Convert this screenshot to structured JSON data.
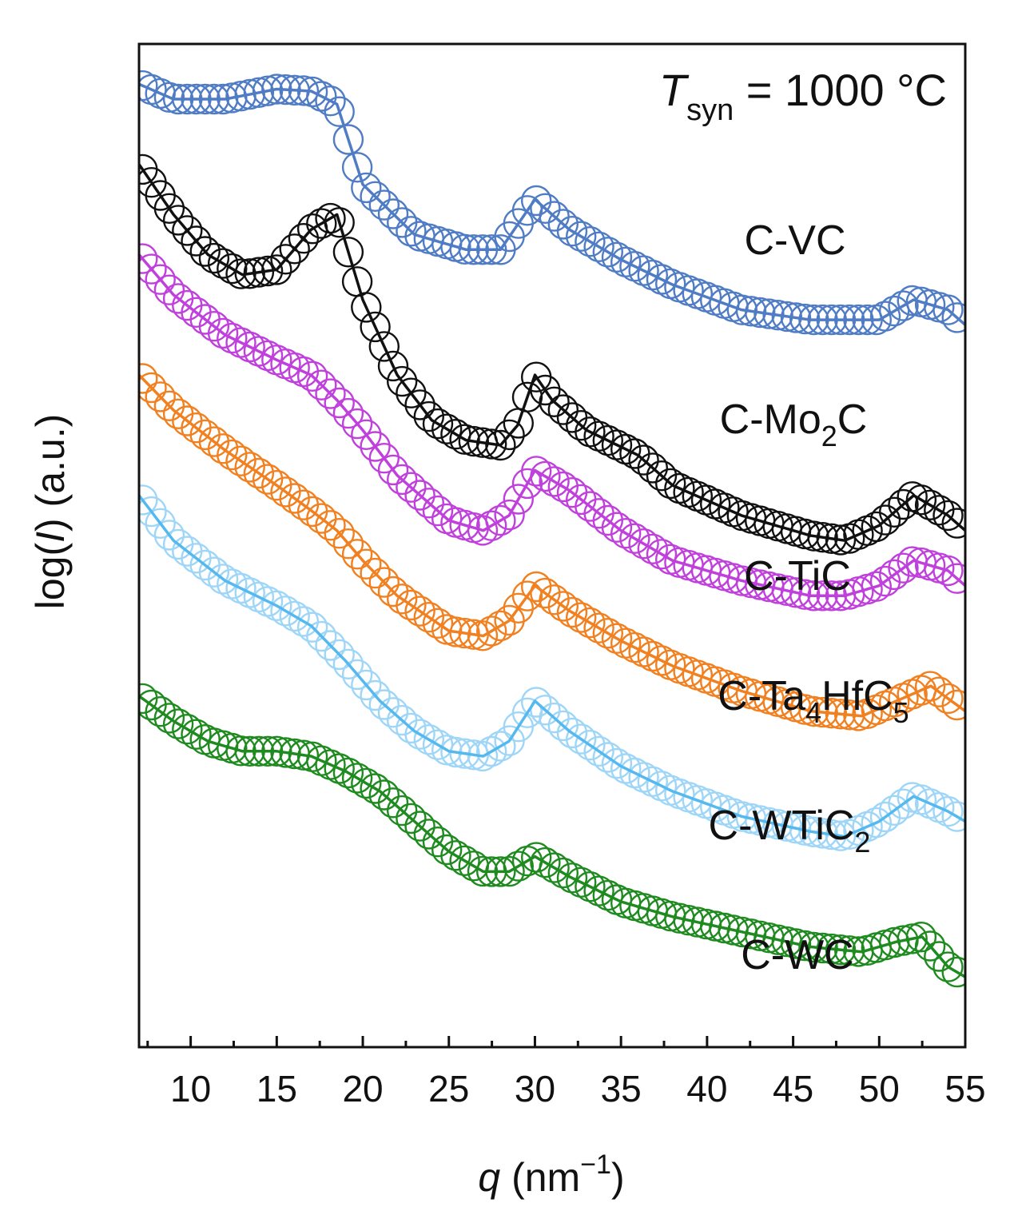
{
  "chart_data": {
    "type": "line",
    "title": "",
    "annotation": {
      "symbol": "T",
      "subscript": "syn",
      "rest": " = 1000 °C"
    },
    "xlabel": {
      "symbol": "q",
      "unit_base": " (nm",
      "unit_exp": "−1",
      "unit_close": ")"
    },
    "ylabel": {
      "prefix": "log(",
      "symbol": "I",
      "suffix": ") (a.u.)"
    },
    "xlim": [
      7,
      55
    ],
    "ylim": [
      0,
      100
    ],
    "x_ticks": [
      10,
      15,
      20,
      25,
      30,
      35,
      40,
      45,
      50,
      55
    ],
    "x_tick_labels": [
      "10",
      "15",
      "20",
      "25",
      "30",
      "35",
      "40",
      "45",
      "50",
      "55"
    ],
    "grid": false,
    "legend": "inline labels next to curves",
    "marker_style": "open circles (data) with solid fit line",
    "series": [
      {
        "name": "C-VC",
        "label_parts": [
          {
            "t": "C-VC"
          }
        ],
        "color": "#4f7cc4",
        "x": [
          7,
          9,
          12,
          15,
          17,
          18.5,
          20,
          23,
          26,
          28,
          30,
          32,
          35,
          38,
          42,
          46,
          50,
          52,
          54,
          55
        ],
        "y": [
          96,
          94.5,
          94.5,
          95.5,
          95.3,
          94,
          86,
          81,
          79.5,
          79.5,
          84.5,
          81.5,
          78.5,
          76,
          73.5,
          72.5,
          72.5,
          74.5,
          73.5,
          72
        ]
      },
      {
        "name": "C-Mo2C",
        "label_parts": [
          {
            "t": "C-Mo"
          },
          {
            "t": "2",
            "sub": true
          },
          {
            "t": "C"
          }
        ],
        "color": "#111111",
        "x": [
          7,
          9,
          11,
          13,
          15,
          17,
          18.5,
          20,
          22,
          24,
          26,
          28,
          29,
          30,
          31,
          33,
          36,
          38,
          42,
          46,
          48,
          50,
          52,
          54,
          55
        ],
        "y": [
          88,
          83,
          79,
          77,
          77.5,
          81.5,
          83,
          74.5,
          67,
          62.5,
          60.5,
          60,
          62,
          67,
          64.5,
          61.5,
          59,
          56,
          53,
          51,
          50.5,
          52,
          55,
          53,
          51.5
        ]
      },
      {
        "name": "C-TiC",
        "label_parts": [
          {
            "t": "C-TiC"
          }
        ],
        "color": "#c040dc",
        "x": [
          7,
          9,
          12,
          15,
          17,
          18.5,
          20,
          22,
          25,
          27,
          28.5,
          30,
          32,
          35,
          38,
          42,
          46,
          48,
          50,
          52,
          54,
          55
        ],
        "y": [
          79,
          75,
          71,
          68.5,
          67,
          64.5,
          61.5,
          57,
          52.5,
          51.5,
          53,
          57.5,
          55.5,
          51.5,
          48.5,
          46.5,
          45,
          45,
          46,
          48.5,
          47.5,
          46
        ]
      },
      {
        "name": "C-Ta4HfC5",
        "label_parts": [
          {
            "t": "C-Ta"
          },
          {
            "t": "4",
            "sub": true
          },
          {
            "t": "HfC"
          },
          {
            "t": "5",
            "sub": true
          }
        ],
        "color": "#f08020",
        "x": [
          7,
          9,
          12,
          15,
          17,
          18.5,
          20,
          22,
          25,
          27,
          28.5,
          30,
          32,
          35,
          38,
          42,
          46,
          49,
          51,
          53,
          55
        ],
        "y": [
          67,
          63.5,
          59.5,
          56,
          53.5,
          51.5,
          48.5,
          45,
          41.5,
          41,
          42.5,
          46,
          43.5,
          40.5,
          38,
          35.5,
          33.5,
          33,
          34.5,
          36,
          33.5
        ]
      },
      {
        "name": "C-WTiC2",
        "label_parts": [
          {
            "t": "C-WTiC"
          },
          {
            "t": "2",
            "sub": true
          }
        ],
        "color": "#55b8ee",
        "marker_color": "#9fd6f8",
        "x": [
          7,
          9,
          12,
          15,
          17,
          19,
          21,
          23,
          25,
          27,
          28.5,
          30,
          32,
          35,
          38,
          42,
          46,
          48,
          50,
          52,
          54,
          55
        ],
        "y": [
          55,
          50.5,
          46.5,
          44,
          42,
          38.5,
          34.5,
          31.5,
          29.5,
          29,
          30.5,
          34.5,
          31.5,
          28,
          25.5,
          23,
          21.5,
          21,
          22.5,
          25,
          23.5,
          22.5
        ]
      },
      {
        "name": "C-WC",
        "label_parts": [
          {
            "t": "C-WC"
          }
        ],
        "color": "#1f8a1f",
        "x": [
          7,
          9,
          11,
          13,
          15,
          17,
          19,
          21,
          23,
          25,
          27,
          28.5,
          30,
          32,
          35,
          38,
          42,
          46,
          49,
          51,
          52.5,
          54,
          55
        ],
        "y": [
          35,
          32.5,
          30.5,
          29.5,
          29.5,
          29,
          27.5,
          25.5,
          22.5,
          19.5,
          17.5,
          17.5,
          19,
          17,
          14.5,
          13,
          11.5,
          10,
          9.5,
          10.5,
          11,
          8,
          7
        ]
      }
    ]
  }
}
